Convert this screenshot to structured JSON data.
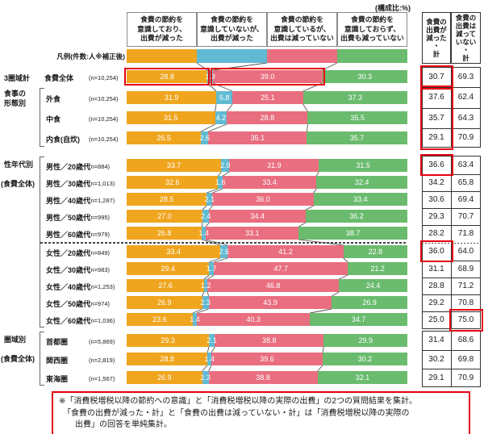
{
  "title_note": "(構成比:%)",
  "legend_label": "凡例(件数:人※補正後)",
  "summary_headers": [
    "食費の\n出費が\n減った\n・\n計",
    "食費の\n出費は\n減って\nいない\n・\n計"
  ],
  "footnote": "※「消費税増税以降の節約への意識」と「消費税増税以降の実際の出費」の2つの質問結果を集計。\n　「食費の出費が減った・計」と「食費の出費は減っていない・計」は「消費税増税以降の実際の\n　　出費」の回答を単純集計。",
  "colors": {
    "segments": [
      "#efa51e",
      "#5fbad2",
      "#e96e7f",
      "#6abb6e"
    ],
    "highlight": "#e60012",
    "table_border": "#333333",
    "header_border": "#8a8a8a",
    "connector": "#555555"
  },
  "chart_data": {
    "type": "bar",
    "stacked": true,
    "orientation": "horizontal",
    "unit": "%",
    "xlim": [
      0,
      100
    ],
    "series_labels": [
      "食費の節約を\n意識しており、\n出費が減った",
      "食費の節約を\n意識していないが、\n出費が減った",
      "食費の節約を\n意識しているが、\n出費は減っていない",
      "食費の節約を\n意識しておらず、\n出費も減っていない"
    ],
    "summary_columns": [
      "食費の出費が減った・計",
      "食費の出費は減っていない・計"
    ],
    "blocks": [
      {
        "groups": [
          {
            "name": "3圏域計",
            "rows": [
              {
                "label": "食費全体",
                "n": "(n=10,254)",
                "values": [
                  28.8,
                  1.9,
                  39.0,
                  30.3
                ],
                "decreased_total": 30.7,
                "not_decreased_total": 69.3
              }
            ]
          },
          {
            "name": "食事の\n形態別",
            "rows": [
              {
                "label": "外食",
                "n": "(n=10,254)",
                "values": [
                  31.9,
                  5.8,
                  25.1,
                  37.3
                ],
                "decreased_total": 37.6,
                "not_decreased_total": 62.4
              },
              {
                "label": "中食",
                "n": "(n=10,254)",
                "values": [
                  31.5,
                  4.2,
                  28.8,
                  35.5
                ],
                "decreased_total": 35.7,
                "not_decreased_total": 64.3
              },
              {
                "label": "内食(自炊)",
                "n": "(n=10,254)",
                "values": [
                  26.5,
                  2.6,
                  35.1,
                  35.7
                ],
                "decreased_total": 29.1,
                "not_decreased_total": 70.9
              }
            ]
          }
        ]
      },
      {
        "groups": [
          {
            "name": "性年代別\n(食費全体)",
            "rows": [
              {
                "label": "男性／20歳代",
                "n": "(n=884)",
                "values": [
                  33.7,
                  2.9,
                  31.9,
                  31.5
                ],
                "decreased_total": 36.6,
                "not_decreased_total": 63.4
              },
              {
                "label": "男性／30歳代",
                "n": "(n=1,013)",
                "values": [
                  32.6,
                  1.6,
                  33.4,
                  32.4
                ],
                "decreased_total": 34.2,
                "not_decreased_total": 65.8
              },
              {
                "label": "男性／40歳代",
                "n": "(n=1,287)",
                "values": [
                  28.5,
                  2.1,
                  36.0,
                  33.4
                ],
                "decreased_total": 30.6,
                "not_decreased_total": 69.4
              },
              {
                "label": "男性／50歳代",
                "n": "(n=995)",
                "values": [
                  27.0,
                  2.4,
                  34.4,
                  36.2
                ],
                "decreased_total": 29.3,
                "not_decreased_total": 70.7
              },
              {
                "label": "男性／60歳代",
                "n": "(n=979)",
                "values": [
                  26.8,
                  1.4,
                  33.1,
                  38.7
                ],
                "decreased_total": 28.2,
                "not_decreased_total": 71.8
              },
              {
                "label": "女性／20歳代",
                "n": "(n=849)",
                "values": [
                  33.4,
                  2.6,
                  41.2,
                  22.8
                ],
                "decreased_total": 36.0,
                "not_decreased_total": 64.0
              },
              {
                "label": "女性／30歳代",
                "n": "(n=983)",
                "values": [
                  29.4,
                  1.7,
                  47.7,
                  21.2
                ],
                "decreased_total": 31.1,
                "not_decreased_total": 68.9
              },
              {
                "label": "女性／40歳代",
                "n": "(n=1,253)",
                "values": [
                  27.6,
                  1.2,
                  46.8,
                  24.4
                ],
                "decreased_total": 28.8,
                "not_decreased_total": 71.2
              },
              {
                "label": "女性／50歳代",
                "n": "(n=974)",
                "values": [
                  26.9,
                  2.3,
                  43.9,
                  26.9
                ],
                "decreased_total": 29.2,
                "not_decreased_total": 70.8
              },
              {
                "label": "女性／60歳代",
                "n": "(n=1,036)",
                "values": [
                  23.6,
                  1.4,
                  40.3,
                  34.7
                ],
                "decreased_total": 25.0,
                "not_decreased_total": 75.0
              }
            ]
          }
        ]
      },
      {
        "groups": [
          {
            "name": "圏域別\n(食費全体)",
            "rows": [
              {
                "label": "首都圏",
                "n": "(n=5,869)",
                "values": [
                  29.3,
                  2.1,
                  38.8,
                  29.9
                ],
                "decreased_total": 31.4,
                "not_decreased_total": 68.6
              },
              {
                "label": "関西圏",
                "n": "(n=2,819)",
                "values": [
                  28.8,
                  1.4,
                  39.6,
                  30.2
                ],
                "decreased_total": 30.2,
                "not_decreased_total": 69.8
              },
              {
                "label": "東海圏",
                "n": "(n=1,567)",
                "values": [
                  26.9,
                  2.3,
                  38.8,
                  32.1
                ],
                "decreased_total": 29.1,
                "not_decreased_total": 70.9
              }
            ]
          }
        ]
      }
    ]
  },
  "highlights": [
    {
      "type": "bar-segment",
      "block": 0,
      "row": 0,
      "segment": 0
    },
    {
      "type": "bar-segment",
      "block": 0,
      "row": 0,
      "segment": 2
    },
    {
      "type": "summary",
      "block": 0,
      "rowStart": 0,
      "rowEnd": 0,
      "col": 0
    },
    {
      "type": "summary",
      "block": 0,
      "rowStart": 1,
      "rowEnd": 3,
      "col": 0
    },
    {
      "type": "summary",
      "block": 1,
      "rowStart": 0,
      "rowEnd": 0,
      "col": 0
    },
    {
      "type": "summary",
      "block": 1,
      "rowStart": 5,
      "rowEnd": 5,
      "col": 0
    },
    {
      "type": "summary",
      "block": 1,
      "rowStart": 9,
      "rowEnd": 9,
      "col": 1
    }
  ]
}
